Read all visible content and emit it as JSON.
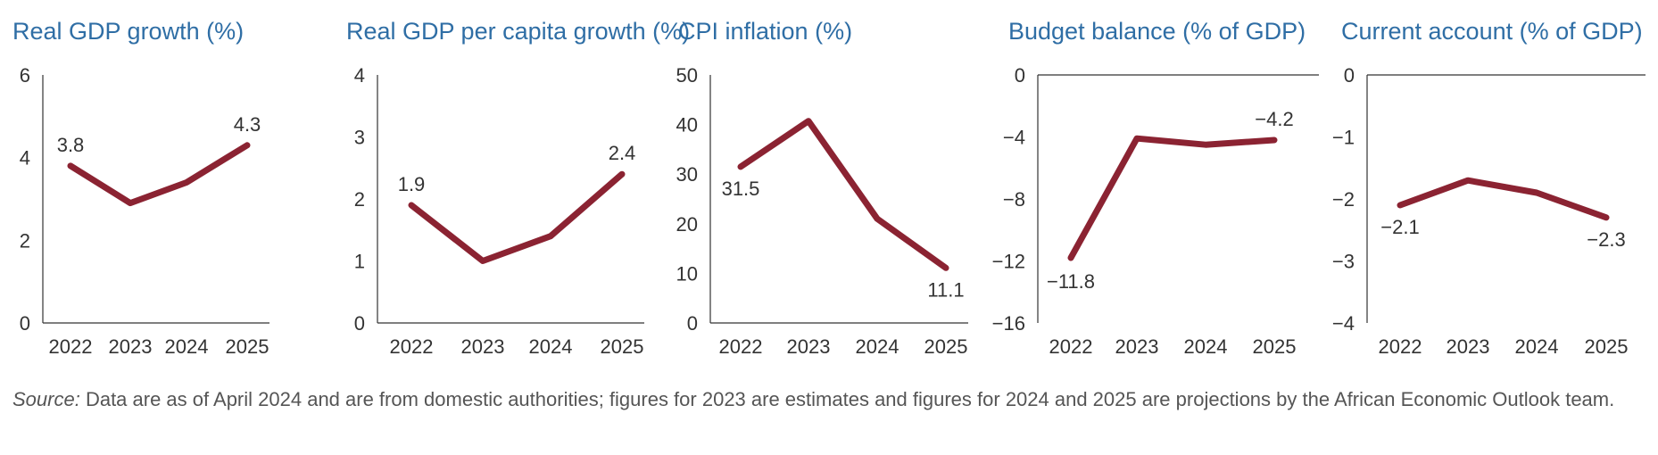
{
  "colors": {
    "title": "#2f6ea5",
    "series": "#8b2332",
    "text": "#333333",
    "axis": "#333333"
  },
  "chart_data": [
    {
      "type": "line",
      "title": "Real GDP growth (%)",
      "categories": [
        "2022",
        "2023",
        "2024",
        "2025"
      ],
      "series": [
        {
          "values": [
            3.8,
            2.9,
            3.4,
            4.3
          ]
        }
      ],
      "ylim": [
        0,
        6
      ],
      "yticks": [
        0,
        2,
        4,
        6
      ],
      "ytick_labels": [
        "0",
        "2",
        "4",
        "6"
      ],
      "labels": [
        {
          "index": 0,
          "text": "3.8"
        },
        {
          "index": 3,
          "text": "4.3"
        }
      ],
      "xaxis": "bottom",
      "grid": false
    },
    {
      "type": "line",
      "title": "Real GDP per capita growth (%)",
      "categories": [
        "2022",
        "2023",
        "2024",
        "2025"
      ],
      "series": [
        {
          "values": [
            1.9,
            1.0,
            1.4,
            2.4
          ]
        }
      ],
      "ylim": [
        0,
        4
      ],
      "yticks": [
        0,
        1,
        2,
        3,
        4
      ],
      "ytick_labels": [
        "0",
        "1",
        "2",
        "3",
        "4"
      ],
      "labels": [
        {
          "index": 0,
          "text": "1.9"
        },
        {
          "index": 3,
          "text": "2.4"
        }
      ],
      "xaxis": "bottom",
      "grid": false
    },
    {
      "type": "line",
      "title": "CPI inflation (%)",
      "categories": [
        "2022",
        "2023",
        "2024",
        "2025"
      ],
      "series": [
        {
          "values": [
            31.5,
            40.7,
            21.0,
            11.1
          ]
        }
      ],
      "ylim": [
        0,
        50
      ],
      "yticks": [
        0,
        10,
        20,
        30,
        40,
        50
      ],
      "ytick_labels": [
        "0",
        "10",
        "20",
        "30",
        "40",
        "50"
      ],
      "labels": [
        {
          "index": 0,
          "text": "31.5"
        },
        {
          "index": 3,
          "text": "11.1"
        }
      ],
      "xaxis": "bottom",
      "grid": false
    },
    {
      "type": "line",
      "title": "Budget balance (% of GDP)",
      "categories": [
        "2022",
        "2023",
        "2024",
        "2025"
      ],
      "series": [
        {
          "values": [
            -11.8,
            -4.1,
            -4.5,
            -4.2
          ]
        }
      ],
      "ylim": [
        -16,
        0
      ],
      "yticks": [
        -16,
        -12,
        -8,
        -4,
        0
      ],
      "ytick_labels": [
        "−16",
        "−12",
        "−8",
        "−4",
        "0"
      ],
      "labels": [
        {
          "index": 0,
          "text": "−11.8"
        },
        {
          "index": 3,
          "text": "−4.2"
        }
      ],
      "xaxis": "top",
      "grid": false
    },
    {
      "type": "line",
      "title": "Current account (% of GDP)",
      "categories": [
        "2022",
        "2023",
        "2024",
        "2025"
      ],
      "series": [
        {
          "values": [
            -2.1,
            -1.7,
            -1.9,
            -2.3
          ]
        }
      ],
      "ylim": [
        -4,
        0
      ],
      "yticks": [
        -4,
        -3,
        -2,
        -1,
        0
      ],
      "ytick_labels": [
        "−4",
        "−3",
        "−2",
        "−1",
        "0"
      ],
      "labels": [
        {
          "index": 0,
          "text": "−2.1"
        },
        {
          "index": 3,
          "text": "−2.3"
        }
      ],
      "xaxis": "top",
      "grid": false
    }
  ],
  "source": {
    "prefix": "Source:",
    "text": " Data are as of April 2024 and are from domestic authorities; figures for 2023 are estimates and figures for 2024 and 2025 are projections by the African Economic Outlook team."
  }
}
